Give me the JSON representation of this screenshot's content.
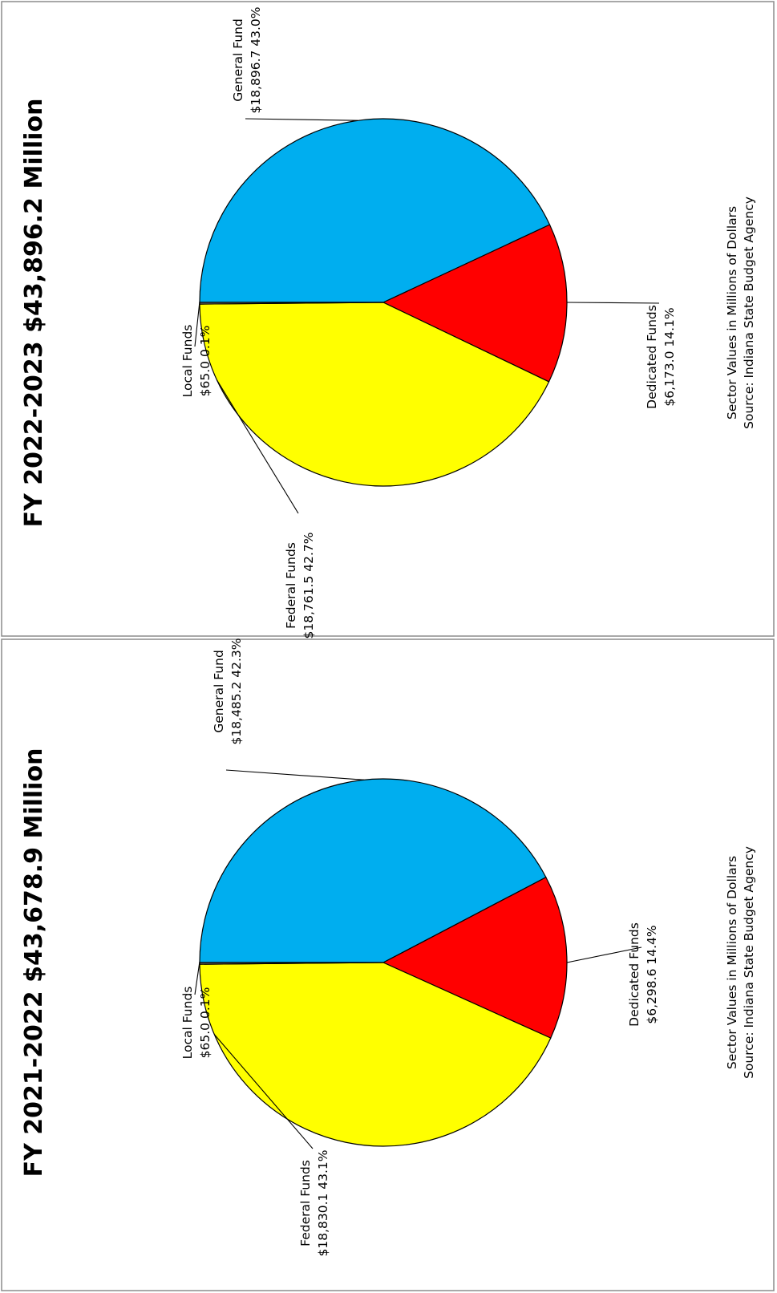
{
  "chart_data": [
    {
      "type": "pie",
      "title": "FY 2021-2022  $43,678.9 Million",
      "slices": [
        {
          "name": "General Fund",
          "value": 18485.2,
          "value_label": "$18,485.2",
          "percent_label": "42.3%",
          "color": "#00AEEF"
        },
        {
          "name": "Dedicated Funds",
          "value": 6298.6,
          "value_label": "$6,298.6",
          "percent_label": "14.4%",
          "color": "#FF0000"
        },
        {
          "name": "Federal Funds",
          "value": 18830.1,
          "value_label": "$18,830.1",
          "percent_label": "43.1%",
          "color": "#FFFF00"
        },
        {
          "name": "Local Funds",
          "value": 65.0,
          "value_label": "$65.0",
          "percent_label": "0.1%",
          "color": "#7F7F7F"
        }
      ],
      "note_line1": "Sector Values in Millions of Dollars",
      "note_line2": "Source:  Indiana State Budget Agency"
    },
    {
      "type": "pie",
      "title": "FY 2022-2023  $43,896.2 Million",
      "slices": [
        {
          "name": "General Fund",
          "value": 18896.7,
          "value_label": "$18,896.7",
          "percent_label": "43.0%",
          "color": "#00AEEF"
        },
        {
          "name": "Dedicated Funds",
          "value": 6173.0,
          "value_label": "$6,173.0",
          "percent_label": "14.1%",
          "color": "#FF0000"
        },
        {
          "name": "Federal Funds",
          "value": 18761.5,
          "value_label": "$18,761.5",
          "percent_label": "42.7%",
          "color": "#FFFF00"
        },
        {
          "name": "Local Funds",
          "value": 65.0,
          "value_label": "$65.0",
          "percent_label": "0.1%",
          "color": "#7F7F7F"
        }
      ],
      "note_line1": "Sector Values in Millions of Dollars",
      "note_line2": "Source:  Indiana State Budget Agency"
    }
  ]
}
